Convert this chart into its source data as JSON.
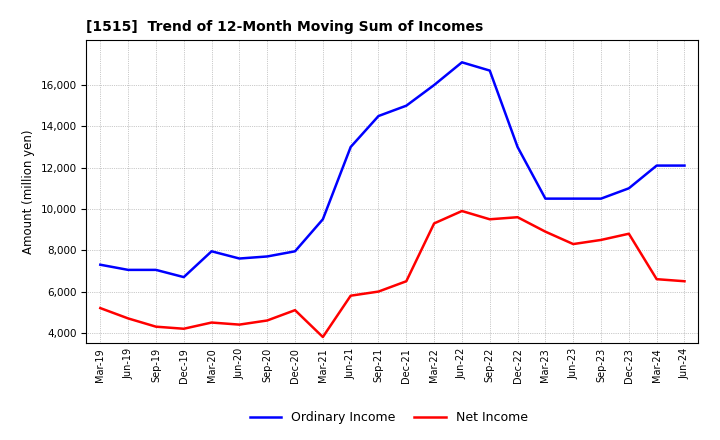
{
  "title": "[1515]  Trend of 12-Month Moving Sum of Incomes",
  "ylabel": "Amount (million yen)",
  "background_color": "#ffffff",
  "plot_bg_color": "#ffffff",
  "grid_color": "#999999",
  "ordinary_income_color": "#0000ff",
  "net_income_color": "#ff0000",
  "line_width": 1.8,
  "x_labels": [
    "Mar-19",
    "Jun-19",
    "Sep-19",
    "Dec-19",
    "Mar-20",
    "Jun-20",
    "Sep-20",
    "Dec-20",
    "Mar-21",
    "Jun-21",
    "Sep-21",
    "Dec-21",
    "Mar-22",
    "Jun-22",
    "Sep-22",
    "Dec-22",
    "Mar-23",
    "Jun-23",
    "Sep-23",
    "Dec-23",
    "Mar-24",
    "Jun-24"
  ],
  "ordinary_income": [
    7300,
    7050,
    7050,
    6700,
    7950,
    7600,
    7700,
    7950,
    9500,
    13000,
    14500,
    15000,
    16000,
    17100,
    16700,
    13000,
    10500,
    10500,
    10500,
    11000,
    12100,
    12100
  ],
  "net_income": [
    5200,
    4700,
    4300,
    4200,
    4500,
    4400,
    4600,
    5100,
    3800,
    5800,
    6000,
    6500,
    9300,
    9900,
    9500,
    9600,
    8900,
    8300,
    8500,
    8800,
    6600,
    6500
  ],
  "ylim_min": 3500,
  "ylim_max": 18200,
  "yticks": [
    4000,
    6000,
    8000,
    10000,
    12000,
    14000,
    16000
  ]
}
